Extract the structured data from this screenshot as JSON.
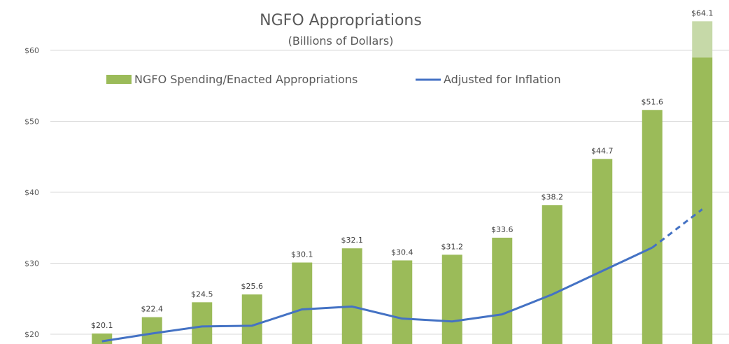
{
  "chart_data": {
    "type": "bar",
    "title": "NGFO Appropriations",
    "subtitle": "(Billions of Dollars)",
    "xlabel": "",
    "ylabel": "",
    "ylim": [
      20,
      65
    ],
    "yticks": [
      {
        "value": 20,
        "label": "$20"
      },
      {
        "value": 30,
        "label": "$30"
      },
      {
        "value": 40,
        "label": "$40"
      },
      {
        "value": 50,
        "label": "$50"
      },
      {
        "value": 60,
        "label": "$60"
      }
    ],
    "grid": true,
    "legend_position": "top",
    "series": [
      {
        "name": "NGFO Spending/Enacted Appropriations",
        "type": "bar",
        "color": "#9bbb59",
        "values": [
          20.1,
          22.4,
          24.5,
          25.6,
          30.1,
          32.1,
          30.4,
          31.2,
          33.6,
          38.2,
          44.7,
          51.6,
          64.1
        ],
        "labels": [
          "$20.1",
          "$22.4",
          "$24.5",
          "$25.6",
          "$30.1",
          "$32.1",
          "$30.4",
          "$31.2",
          "$33.6",
          "$38.2",
          "$44.7",
          "$51.6",
          "$64.1"
        ]
      },
      {
        "name": "Adjusted for Inflation",
        "type": "line",
        "color": "#4472c4",
        "values": [
          19.0,
          20.1,
          21.1,
          21.2,
          23.5,
          23.9,
          22.2,
          21.8,
          22.8,
          25.6,
          28.9,
          32.2,
          37.6
        ],
        "dashed_last_segment": true
      }
    ],
    "last_bar_upper_portion": {
      "lower_value": 59.0,
      "upper_color": "#c6d9a8"
    }
  }
}
